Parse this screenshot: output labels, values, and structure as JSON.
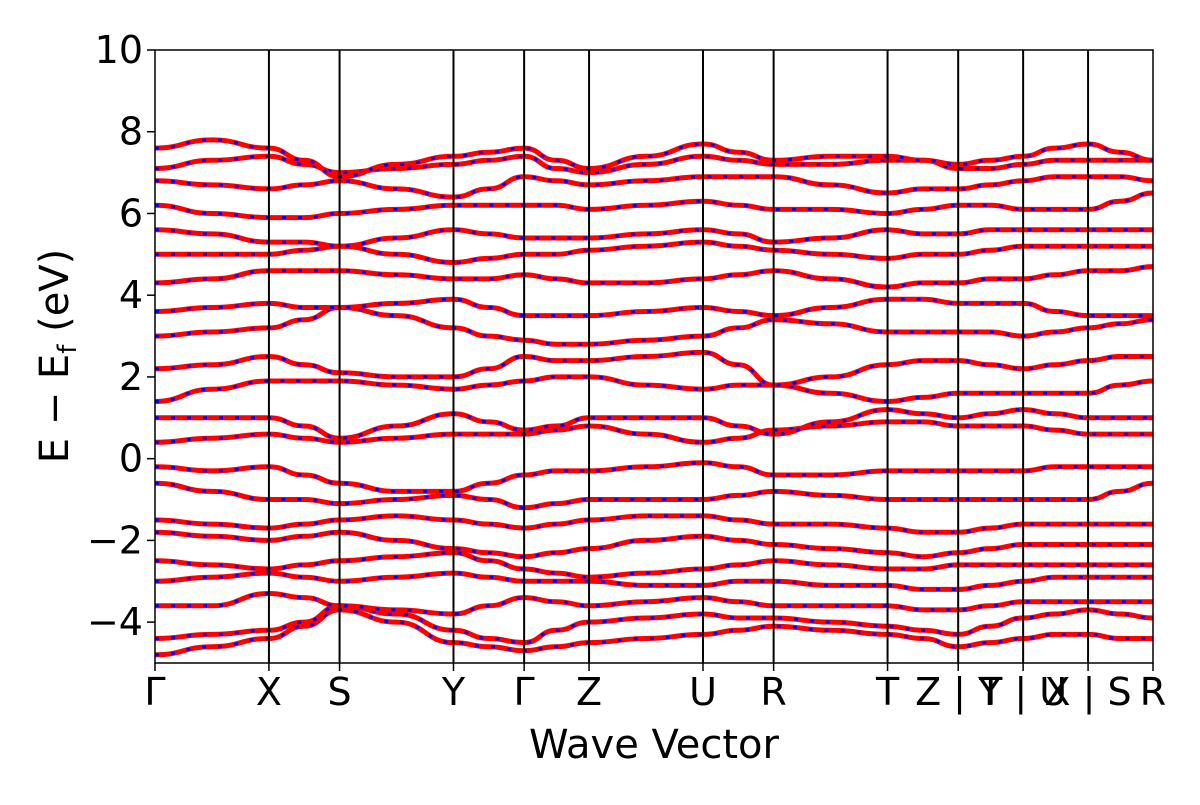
{
  "chart_data": {
    "type": "line",
    "title": "",
    "xlabel": "Wave Vector",
    "ylabel": {
      "main": "E − E",
      "sub": "f",
      "unit": " (eV)"
    },
    "ylim": [
      -5,
      10
    ],
    "yticks": [
      "−4",
      "−2",
      "0",
      "2",
      "4",
      "6",
      "8",
      "10"
    ],
    "ytick_values": [
      -4,
      -2,
      0,
      2,
      4,
      6,
      8,
      10
    ],
    "grid": false,
    "legend": "none",
    "kpath_labels": [
      "Γ",
      "X",
      "S",
      "Y",
      "Γ",
      "Z",
      "U",
      "R",
      "T",
      "Z | Y",
      "T | U",
      "X | S",
      "R"
    ],
    "kpath_positions": [
      0,
      1,
      1.62,
      2.62,
      3.24,
      3.81,
      4.81,
      5.43,
      6.43,
      7.05,
      7.62,
      8.19,
      8.76
    ],
    "segment_breaks_after_label": [
      9,
      10,
      11
    ],
    "colors": {
      "series_a": "#ff0000",
      "series_b": "#0000ff",
      "axis": "#000000"
    },
    "series": [],
    "bands_x": [
      0,
      0.5,
      1,
      1.31,
      1.62,
      2.12,
      2.62,
      2.93,
      3.24,
      3.52,
      3.81,
      4.31,
      4.81,
      5.12,
      5.43,
      5.93,
      6.43,
      6.74,
      7.05,
      7.33,
      7.62,
      7.9,
      8.19,
      8.47,
      8.76
    ],
    "bands_y": [
      [
        -4.8,
        -4.6,
        -4.4,
        -4.1,
        -3.7,
        -4.0,
        -4.5,
        -4.6,
        -4.7,
        -4.6,
        -4.5,
        -4.4,
        -4.3,
        -4.2,
        -4.1,
        -4.2,
        -4.3,
        -4.4,
        -4.6,
        -4.5,
        -4.4,
        -4.3,
        -4.3,
        -4.4,
        -4.4
      ],
      [
        -4.4,
        -4.3,
        -4.2,
        -4.0,
        -3.6,
        -3.8,
        -4.2,
        -4.4,
        -4.5,
        -4.2,
        -4.0,
        -3.9,
        -3.8,
        -3.9,
        -3.9,
        -4.0,
        -4.1,
        -4.2,
        -4.3,
        -4.1,
        -3.9,
        -3.8,
        -3.7,
        -3.8,
        -3.9
      ],
      [
        -3.6,
        -3.6,
        -3.3,
        -3.4,
        -3.6,
        -3.7,
        -3.8,
        -3.6,
        -3.4,
        -3.5,
        -3.6,
        -3.5,
        -3.4,
        -3.5,
        -3.6,
        -3.6,
        -3.6,
        -3.7,
        -3.7,
        -3.6,
        -3.5,
        -3.5,
        -3.5,
        -3.5,
        -3.5
      ],
      [
        -3.0,
        -2.9,
        -2.8,
        -2.9,
        -3.0,
        -2.9,
        -2.8,
        -2.9,
        -3.0,
        -3.0,
        -3.0,
        -3.1,
        -3.1,
        -3.0,
        -3.0,
        -3.1,
        -3.1,
        -3.2,
        -3.2,
        -3.1,
        -3.0,
        -2.9,
        -2.9,
        -2.9,
        -2.9
      ],
      [
        -2.5,
        -2.6,
        -2.7,
        -2.6,
        -2.5,
        -2.4,
        -2.3,
        -2.5,
        -2.7,
        -2.8,
        -2.9,
        -2.8,
        -2.7,
        -2.6,
        -2.5,
        -2.6,
        -2.7,
        -2.7,
        -2.6,
        -2.6,
        -2.6,
        -2.6,
        -2.6,
        -2.6,
        -2.6
      ],
      [
        -1.8,
        -1.9,
        -2.0,
        -1.9,
        -1.8,
        -2.0,
        -2.2,
        -2.3,
        -2.4,
        -2.3,
        -2.2,
        -2.0,
        -1.9,
        -2.0,
        -2.1,
        -2.2,
        -2.3,
        -2.4,
        -2.3,
        -2.2,
        -2.1,
        -2.1,
        -2.1,
        -2.1,
        -2.1
      ],
      [
        -1.5,
        -1.6,
        -1.7,
        -1.6,
        -1.5,
        -1.4,
        -1.5,
        -1.6,
        -1.7,
        -1.6,
        -1.5,
        -1.4,
        -1.4,
        -1.5,
        -1.6,
        -1.6,
        -1.7,
        -1.8,
        -1.8,
        -1.7,
        -1.6,
        -1.6,
        -1.6,
        -1.6,
        -1.6
      ],
      [
        -0.6,
        -0.8,
        -1.0,
        -1.0,
        -1.1,
        -1.0,
        -0.9,
        -1.0,
        -1.2,
        -1.1,
        -1.0,
        -1.0,
        -1.0,
        -0.9,
        -0.8,
        -0.9,
        -1.0,
        -1.0,
        -1.0,
        -1.0,
        -1.0,
        -1.0,
        -1.0,
        -0.8,
        -0.6
      ],
      [
        -0.2,
        -0.3,
        -0.2,
        -0.4,
        -0.6,
        -0.8,
        -0.8,
        -0.6,
        -0.4,
        -0.3,
        -0.3,
        -0.2,
        -0.1,
        -0.2,
        -0.4,
        -0.4,
        -0.3,
        -0.3,
        -0.3,
        -0.3,
        -0.3,
        -0.2,
        -0.2,
        -0.2,
        -0.2
      ],
      [
        0.4,
        0.5,
        0.6,
        0.5,
        0.4,
        0.5,
        0.6,
        0.6,
        0.6,
        0.7,
        0.8,
        0.6,
        0.4,
        0.5,
        0.7,
        0.8,
        0.9,
        0.9,
        0.8,
        0.8,
        0.8,
        0.7,
        0.6,
        0.6,
        0.6
      ],
      [
        1.0,
        1.0,
        1.0,
        0.8,
        0.5,
        0.8,
        1.1,
        0.9,
        0.7,
        0.8,
        1.0,
        1.0,
        1.0,
        0.8,
        0.6,
        0.9,
        1.2,
        1.1,
        1.0,
        1.1,
        1.2,
        1.1,
        1.0,
        1.0,
        1.0
      ],
      [
        1.4,
        1.7,
        1.9,
        1.9,
        1.9,
        1.8,
        1.7,
        1.8,
        1.9,
        2.0,
        2.0,
        1.8,
        1.7,
        1.8,
        1.8,
        1.6,
        1.4,
        1.5,
        1.6,
        1.6,
        1.6,
        1.6,
        1.6,
        1.8,
        1.9
      ],
      [
        2.2,
        2.3,
        2.5,
        2.3,
        2.1,
        2.0,
        2.0,
        2.2,
        2.5,
        2.4,
        2.4,
        2.5,
        2.6,
        2.3,
        1.8,
        2.0,
        2.3,
        2.4,
        2.4,
        2.3,
        2.2,
        2.3,
        2.4,
        2.5,
        2.5
      ],
      [
        3.0,
        3.1,
        3.2,
        3.4,
        3.7,
        3.5,
        3.2,
        3.0,
        2.9,
        2.8,
        2.8,
        2.9,
        3.0,
        3.2,
        3.4,
        3.3,
        3.1,
        3.1,
        3.1,
        3.1,
        3.0,
        3.1,
        3.2,
        3.3,
        3.4
      ],
      [
        3.6,
        3.7,
        3.8,
        3.7,
        3.7,
        3.8,
        3.9,
        3.7,
        3.5,
        3.5,
        3.5,
        3.6,
        3.7,
        3.6,
        3.5,
        3.7,
        3.9,
        3.9,
        3.8,
        3.8,
        3.8,
        3.6,
        3.5,
        3.5,
        3.5
      ],
      [
        4.3,
        4.4,
        4.6,
        4.6,
        4.6,
        4.5,
        4.4,
        4.4,
        4.5,
        4.4,
        4.3,
        4.3,
        4.4,
        4.5,
        4.6,
        4.4,
        4.2,
        4.3,
        4.3,
        4.4,
        4.4,
        4.5,
        4.6,
        4.6,
        4.7
      ],
      [
        5.0,
        5.0,
        5.0,
        5.1,
        5.2,
        5.0,
        4.8,
        4.9,
        5.0,
        5.0,
        5.1,
        5.2,
        5.3,
        5.2,
        5.1,
        5.0,
        4.9,
        5.0,
        5.0,
        5.1,
        5.2,
        5.2,
        5.2,
        5.2,
        5.2
      ],
      [
        5.6,
        5.5,
        5.3,
        5.3,
        5.2,
        5.4,
        5.6,
        5.5,
        5.4,
        5.4,
        5.4,
        5.5,
        5.6,
        5.5,
        5.3,
        5.4,
        5.6,
        5.5,
        5.5,
        5.6,
        5.6,
        5.6,
        5.6,
        5.6,
        5.6
      ],
      [
        6.2,
        6.0,
        5.9,
        5.9,
        6.0,
        6.1,
        6.2,
        6.2,
        6.2,
        6.2,
        6.1,
        6.2,
        6.3,
        6.2,
        6.1,
        6.1,
        6.0,
        6.1,
        6.2,
        6.2,
        6.1,
        6.1,
        6.1,
        6.3,
        6.5
      ],
      [
        6.8,
        6.7,
        6.6,
        6.7,
        6.8,
        6.6,
        6.4,
        6.6,
        6.9,
        6.8,
        6.7,
        6.8,
        6.9,
        6.9,
        6.9,
        6.7,
        6.5,
        6.6,
        6.6,
        6.7,
        6.8,
        6.9,
        6.9,
        6.9,
        6.8
      ],
      [
        7.1,
        7.3,
        7.4,
        7.2,
        7.0,
        7.1,
        7.2,
        7.3,
        7.4,
        7.1,
        7.0,
        7.2,
        7.4,
        7.3,
        7.2,
        7.2,
        7.3,
        7.3,
        7.1,
        7.1,
        7.2,
        7.3,
        7.3,
        7.3,
        7.3
      ],
      [
        7.6,
        7.8,
        7.6,
        7.3,
        6.9,
        7.2,
        7.4,
        7.5,
        7.6,
        7.3,
        7.1,
        7.4,
        7.7,
        7.5,
        7.3,
        7.4,
        7.4,
        7.3,
        7.2,
        7.3,
        7.4,
        7.6,
        7.7,
        7.5,
        7.3
      ]
    ]
  }
}
